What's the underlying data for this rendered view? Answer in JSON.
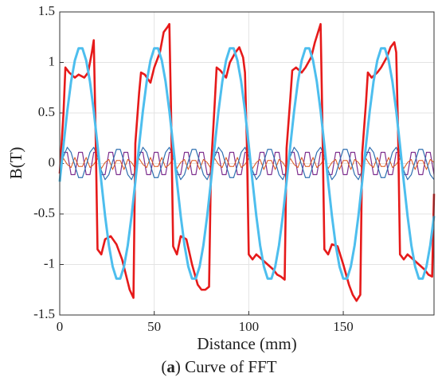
{
  "chart_data": {
    "type": "line",
    "xlabel": "Distance (mm)",
    "ylabel": "B(T)",
    "caption_parts": [
      "(",
      "a",
      ") Curve of FFT"
    ],
    "xlim": [
      0,
      198
    ],
    "ylim": [
      -1.5,
      1.5
    ],
    "xticks": [
      0,
      50,
      100,
      150
    ],
    "yticks": [
      -1.5,
      -1,
      -0.5,
      0,
      0.5,
      1,
      1.5
    ],
    "grid": true,
    "x": [
      0,
      2,
      4,
      6,
      8,
      10,
      12,
      14,
      16,
      18,
      20,
      22,
      24,
      26,
      28,
      30,
      32,
      34,
      36,
      38,
      40,
      42,
      44,
      46,
      48,
      50,
      52,
      54,
      56,
      58,
      60,
      62,
      64,
      66,
      68,
      70,
      72,
      74,
      76,
      78,
      80,
      82,
      84,
      86,
      88,
      90,
      92,
      94,
      96,
      98,
      100,
      102,
      104,
      106,
      108,
      110,
      112,
      114,
      116,
      118,
      120,
      122,
      124,
      126,
      128,
      130,
      132,
      134,
      136,
      138,
      140,
      142,
      144,
      146,
      148,
      150,
      152,
      154,
      156,
      158,
      160,
      162,
      164,
      166,
      168,
      170,
      172,
      174,
      176,
      178,
      180,
      182,
      184,
      186,
      188,
      190,
      192,
      194,
      196,
      198
    ],
    "series": [
      {
        "color": "#7e2f8e",
        "width": 1.2,
        "values": [
          -0.11,
          0.11,
          0.11,
          -0.11,
          -0.11,
          0.11,
          0.11,
          -0.11,
          -0.11,
          0.11,
          0.11,
          -0.11,
          -0.11,
          0.11,
          0.11,
          -0.11,
          -0.11,
          0.11,
          0.11,
          -0.11,
          -0.11,
          0.11,
          0.11,
          -0.11,
          -0.11,
          0.11,
          0.11,
          -0.11,
          -0.11,
          0.11,
          0.11,
          -0.11,
          -0.11,
          0.11,
          0.11,
          -0.11,
          -0.11,
          0.11,
          0.11,
          -0.11,
          -0.11,
          0.11,
          0.11,
          -0.11,
          -0.11,
          0.11,
          0.11,
          -0.11,
          -0.11,
          0.11,
          0.11,
          -0.11,
          -0.11,
          0.11,
          0.11,
          -0.11,
          -0.11,
          0.11,
          0.11,
          -0.11,
          -0.11,
          0.11,
          0.11,
          -0.11,
          -0.11,
          0.11,
          0.11,
          -0.11,
          -0.11,
          0.11,
          0.11,
          -0.11,
          -0.11,
          0.11,
          0.11,
          -0.11,
          -0.11,
          0.11,
          0.11,
          -0.11,
          -0.11,
          0.11,
          0.11,
          -0.11,
          -0.11,
          0.11,
          0.11,
          -0.11,
          -0.11,
          0.11,
          0.11,
          -0.11,
          -0.11,
          0.11,
          0.11,
          -0.11,
          -0.11,
          0.11,
          0.11,
          -0.11
        ]
      },
      {
        "color": "#d95319",
        "width": 1,
        "values": [
          -0.05,
          0.05,
          -0.01,
          -0.04,
          0.06,
          -0.03,
          -0.03,
          0.06,
          -0.04,
          -0.01,
          0.05,
          -0.05,
          0.01,
          0.04,
          -0.06,
          0.03,
          0.03,
          -0.06,
          0.04,
          0.01,
          -0.05,
          0.05,
          -0.01,
          -0.04,
          0.06,
          -0.03,
          -0.03,
          0.06,
          -0.04,
          -0.01,
          0.05,
          -0.05,
          0.01,
          0.04,
          -0.06,
          0.03,
          0.03,
          -0.06,
          0.04,
          0.01,
          -0.05,
          0.05,
          -0.01,
          -0.04,
          0.06,
          -0.03,
          -0.03,
          0.06,
          -0.04,
          -0.01,
          0.05,
          -0.05,
          0.01,
          0.04,
          -0.06,
          0.03,
          0.03,
          -0.06,
          0.04,
          0.01,
          -0.05,
          0.05,
          -0.01,
          -0.04,
          0.06,
          -0.03,
          -0.03,
          0.06,
          -0.04,
          -0.01,
          0.05,
          -0.05,
          0.01,
          0.04,
          -0.06,
          0.03,
          0.03,
          -0.06,
          0.04,
          0.01,
          -0.05,
          0.05,
          -0.01,
          -0.04,
          0.06,
          -0.03,
          -0.03,
          0.06,
          -0.04,
          -0.01,
          0.05,
          -0.05,
          0.01,
          0.04,
          -0.06,
          0.03,
          0.03,
          -0.06,
          0.04,
          0.01
        ]
      },
      {
        "color": "#2f6fb0",
        "width": 1.2,
        "values": [
          -0.07,
          0.07,
          0.16,
          0.11,
          -0.02,
          -0.14,
          -0.14,
          -0.02,
          0.11,
          0.16,
          0.07,
          -0.07,
          -0.16,
          -0.11,
          0.02,
          0.14,
          0.14,
          0.02,
          -0.11,
          -0.16,
          -0.07,
          0.07,
          0.16,
          0.11,
          -0.02,
          -0.14,
          -0.14,
          -0.02,
          0.11,
          0.16,
          0.07,
          -0.07,
          -0.16,
          -0.11,
          0.02,
          0.14,
          0.14,
          0.02,
          -0.11,
          -0.16,
          -0.07,
          0.07,
          0.16,
          0.11,
          -0.02,
          -0.14,
          -0.14,
          -0.02,
          0.11,
          0.16,
          0.07,
          -0.07,
          -0.16,
          -0.11,
          0.02,
          0.14,
          0.14,
          0.02,
          -0.11,
          -0.16,
          -0.07,
          0.07,
          0.16,
          0.11,
          -0.02,
          -0.14,
          -0.14,
          -0.02,
          0.11,
          0.16,
          0.07,
          -0.07,
          -0.16,
          -0.11,
          0.02,
          0.14,
          0.14,
          0.02,
          -0.11,
          -0.16,
          -0.07,
          0.07,
          0.16,
          0.11,
          -0.02,
          -0.14,
          -0.14,
          -0.02,
          0.11,
          0.16,
          0.07,
          -0.07,
          -0.16,
          -0.11,
          0.02,
          0.14,
          0.14,
          0.02,
          -0.11,
          -0.16
        ]
      },
      {
        "color": "#e61a1a",
        "width": 2.6,
        "x": [
          0,
          2,
          3,
          5,
          8,
          10,
          13,
          15,
          17,
          18,
          19,
          20,
          22,
          24,
          27,
          30,
          33,
          35,
          37,
          39,
          40,
          42,
          43,
          45,
          48,
          50,
          53,
          55,
          57,
          58,
          59,
          60,
          62,
          64,
          67,
          70,
          73,
          75,
          77,
          79,
          80,
          82,
          83,
          85,
          88,
          90,
          93,
          95,
          97,
          98,
          99,
          100,
          102,
          104,
          107,
          110,
          113,
          115,
          117,
          119,
          120,
          122,
          123,
          125,
          128,
          130,
          133,
          135,
          137,
          138,
          139,
          140,
          142,
          144,
          147,
          150,
          153,
          155,
          157,
          159,
          160,
          162,
          163,
          165,
          168,
          170,
          173,
          175,
          177,
          178,
          179,
          180,
          182,
          184,
          187,
          190,
          193,
          195,
          197,
          198
        ],
        "values": [
          -0.1,
          0.5,
          0.95,
          0.9,
          0.85,
          0.88,
          0.85,
          0.9,
          1.1,
          1.22,
          0.3,
          -0.85,
          -0.9,
          -0.75,
          -0.72,
          -0.8,
          -0.95,
          -1.1,
          -1.25,
          -1.33,
          0.2,
          0.7,
          0.9,
          0.88,
          0.8,
          0.95,
          1.1,
          1.3,
          1.35,
          1.38,
          0.4,
          -0.82,
          -0.9,
          -0.72,
          -0.75,
          -1.0,
          -1.2,
          -1.25,
          -1.25,
          -1.22,
          -0.05,
          0.6,
          0.95,
          0.92,
          0.85,
          1.0,
          1.1,
          1.15,
          1.05,
          0.9,
          0.2,
          -0.9,
          -0.95,
          -0.9,
          -0.95,
          -1.0,
          -1.05,
          -1.1,
          -1.12,
          -1.15,
          0.15,
          0.65,
          0.92,
          0.95,
          0.9,
          0.95,
          1.05,
          1.2,
          1.32,
          1.38,
          0.35,
          -0.85,
          -0.9,
          -0.8,
          -0.82,
          -1.0,
          -1.2,
          -1.3,
          -1.36,
          -1.3,
          0.1,
          0.6,
          0.9,
          0.85,
          0.9,
          0.95,
          1.05,
          1.15,
          1.2,
          1.1,
          0.3,
          -0.9,
          -0.95,
          -0.9,
          -0.95,
          -1.0,
          -1.05,
          -1.1,
          -1.12,
          -0.3
        ]
      },
      {
        "color": "#4dbeee",
        "width": 3,
        "values": [
          -0.18,
          0.18,
          0.52,
          0.81,
          1.02,
          1.14,
          1.14,
          1.02,
          0.81,
          0.52,
          0.18,
          -0.18,
          -0.52,
          -0.81,
          -1.02,
          -1.14,
          -1.14,
          -1.02,
          -0.81,
          -0.52,
          -0.18,
          0.18,
          0.52,
          0.81,
          1.02,
          1.14,
          1.14,
          1.02,
          0.81,
          0.52,
          0.18,
          -0.18,
          -0.52,
          -0.81,
          -1.02,
          -1.14,
          -1.14,
          -1.02,
          -0.81,
          -0.52,
          -0.18,
          0.18,
          0.52,
          0.81,
          1.02,
          1.14,
          1.14,
          1.02,
          0.81,
          0.52,
          0.18,
          -0.18,
          -0.52,
          -0.81,
          -1.02,
          -1.14,
          -1.14,
          -1.02,
          -0.81,
          -0.52,
          -0.18,
          0.18,
          0.52,
          0.81,
          1.02,
          1.14,
          1.14,
          1.02,
          0.81,
          0.52,
          0.18,
          -0.18,
          -0.52,
          -0.81,
          -1.02,
          -1.14,
          -1.14,
          -1.02,
          -0.81,
          -0.52,
          -0.18,
          0.18,
          0.52,
          0.81,
          1.02,
          1.14,
          1.14,
          1.02,
          0.81,
          0.52,
          0.18,
          -0.18,
          -0.52,
          -0.81,
          -1.02,
          -1.14,
          -1.14,
          -1.02,
          -0.81,
          -0.52
        ]
      }
    ]
  }
}
